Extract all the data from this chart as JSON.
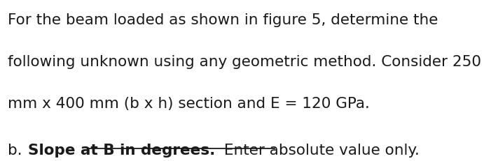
{
  "line1": "For the beam loaded as shown in figure 5, determine the",
  "line2": "following unknown using any geometric method. Consider 250",
  "line3": "mm x 400 mm (b x h) section and E = 120 GPa.",
  "line4_prefix": "b. ",
  "line4_bold_underline": "Slope at B in degrees.",
  "line4_suffix": " Enter absolute value only.",
  "font_size_main": 15.5,
  "text_color": "#1a1a1a",
  "background_color": "#ffffff",
  "font_family": "DejaVu Sans"
}
